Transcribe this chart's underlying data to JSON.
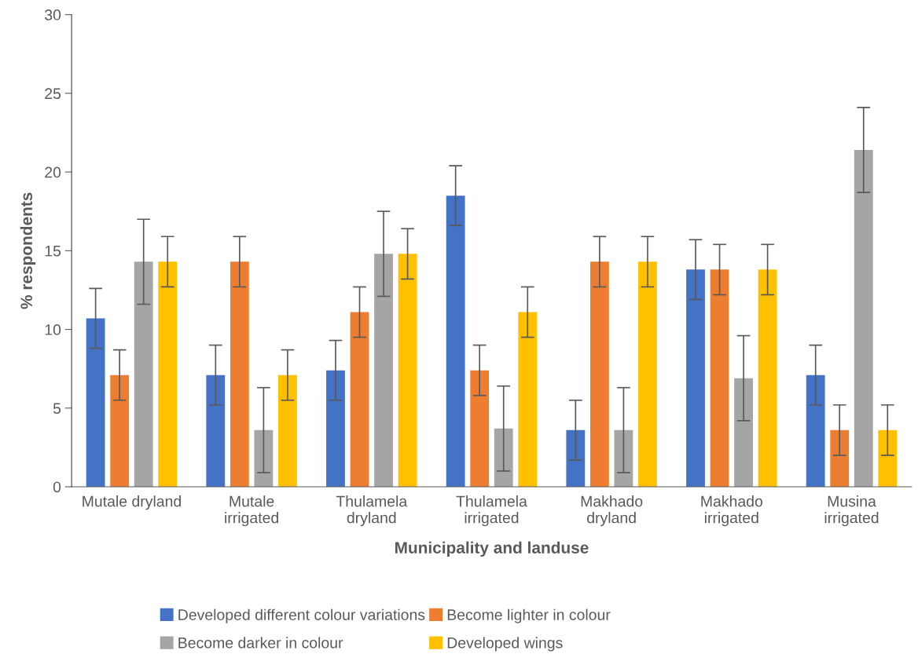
{
  "chart_data": {
    "type": "bar",
    "xlabel": "Municipality and landuse",
    "ylabel": "% respondents",
    "categories": [
      "Mutale dryland",
      "Mutale\nirrigated",
      "Thulamela\ndryland",
      "Thulamela\nirrigated",
      "Makhado\ndryland",
      "Makhado\nirrigated",
      "Musina\nirrigated"
    ],
    "series": [
      {
        "name": "Developed different colour variations",
        "color": "#4472c4",
        "values": [
          10.7,
          7.1,
          7.4,
          18.5,
          3.6,
          13.8,
          7.1
        ],
        "errors": [
          1.9,
          1.9,
          1.9,
          1.9,
          1.9,
          1.9,
          1.9
        ]
      },
      {
        "name": "Become lighter in colour",
        "color": "#ed7d31",
        "values": [
          7.1,
          14.3,
          11.1,
          7.4,
          14.3,
          13.8,
          3.6
        ],
        "errors": [
          1.6,
          1.6,
          1.6,
          1.6,
          1.6,
          1.6,
          1.6
        ]
      },
      {
        "name": "Become darker in colour",
        "color": "#a5a5a5",
        "values": [
          14.3,
          3.6,
          14.8,
          3.7,
          3.6,
          6.9,
          21.4
        ],
        "errors": [
          2.7,
          2.7,
          2.7,
          2.7,
          2.7,
          2.7,
          2.7
        ]
      },
      {
        "name": "Developed wings",
        "color": "#ffc000",
        "values": [
          14.3,
          7.1,
          14.8,
          11.1,
          14.3,
          13.8,
          3.6
        ],
        "errors": [
          1.6,
          1.6,
          1.6,
          1.6,
          1.6,
          1.6,
          1.6
        ]
      }
    ],
    "ylim": [
      0,
      30
    ],
    "yticks": [
      0,
      5,
      10,
      15,
      20,
      25,
      30
    ],
    "grid": false,
    "legend": "bottom"
  }
}
